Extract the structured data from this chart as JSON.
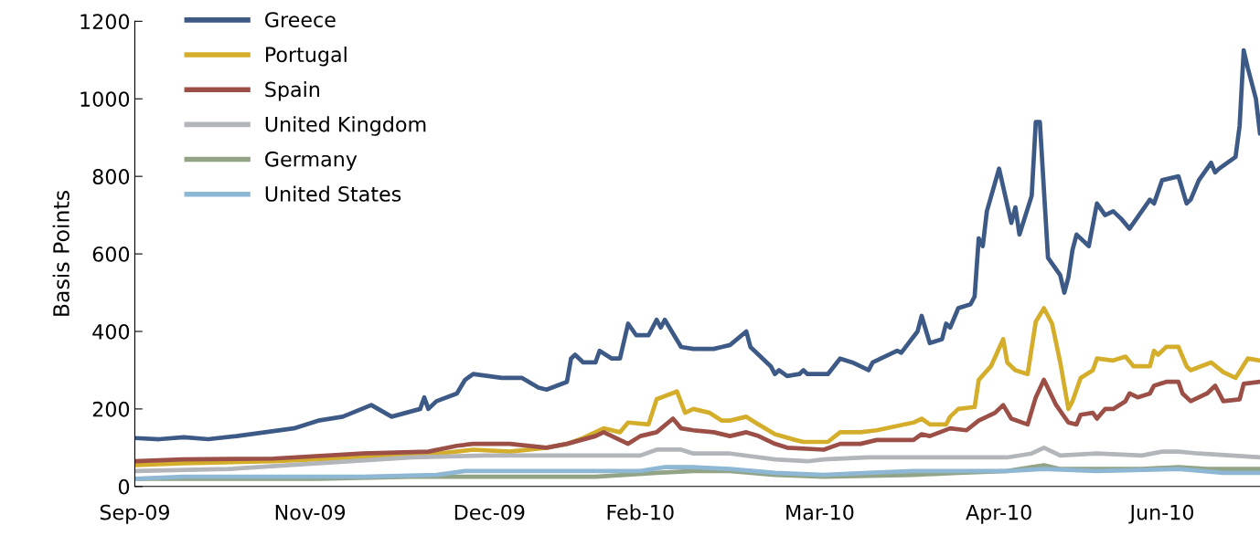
{
  "chart_data": {
    "type": "line",
    "ylabel": "Basis Points",
    "xlim": [
      "2009-09-30",
      "2010-07-03"
    ],
    "xticks": [
      {
        "value": "2009-09-30",
        "label": "Sep-09"
      },
      {
        "value": "2009-11-12",
        "label": "Nov-09"
      },
      {
        "value": "2009-12-26",
        "label": "Dec-09"
      },
      {
        "value": "2010-02-01",
        "label": "Feb-10"
      },
      {
        "value": "2010-03-17",
        "label": "Mar-10"
      },
      {
        "value": "2010-04-30",
        "label": "Apr-10"
      },
      {
        "value": "2010-06-09",
        "label": "Jun-10"
      }
    ],
    "ylim": [
      0,
      1200
    ],
    "yticks": [
      0,
      200,
      400,
      600,
      800,
      1000,
      1200
    ],
    "grid": false,
    "legend": "top left",
    "marker": "none",
    "line_style": "solid",
    "series": [
      {
        "name": "Greece",
        "color": "#3d5a87",
        "x": [
          "2009-09-30",
          "2009-10-06",
          "2009-10-12",
          "2009-10-18",
          "2009-10-25",
          "2009-11-01",
          "2009-11-08",
          "2009-11-14",
          "2009-11-20",
          "2009-11-27",
          "2009-12-02",
          "2009-12-09",
          "2009-12-10",
          "2009-12-11",
          "2009-12-13",
          "2009-12-18",
          "2009-12-20",
          "2009-12-22",
          "2009-12-29",
          "2010-01-03",
          "2010-01-07",
          "2010-01-09",
          "2010-01-14",
          "2010-01-15",
          "2010-01-16",
          "2010-01-18",
          "2010-01-21",
          "2010-01-22",
          "2010-01-25",
          "2010-01-27",
          "2010-01-29",
          "2010-01-31",
          "2010-02-03",
          "2010-02-05",
          "2010-02-06",
          "2010-02-07",
          "2010-02-11",
          "2010-02-14",
          "2010-02-19",
          "2010-02-21",
          "2010-02-23",
          "2010-02-27",
          "2010-02-28",
          "2010-03-03",
          "2010-03-05",
          "2010-03-06",
          "2010-03-07",
          "2010-03-09",
          "2010-03-12",
          "2010-03-13",
          "2010-03-14",
          "2010-03-19",
          "2010-03-22",
          "2010-03-25",
          "2010-03-27",
          "2010-03-29",
          "2010-03-30",
          "2010-04-01",
          "2010-04-05",
          "2010-04-06",
          "2010-04-10",
          "2010-04-11",
          "2010-04-13",
          "2010-04-16",
          "2010-04-17",
          "2010-04-18",
          "2010-04-20",
          "2010-04-23",
          "2010-04-24",
          "2010-04-25",
          "2010-04-26",
          "2010-04-27",
          "2010-04-30",
          "2010-05-03",
          "2010-05-04",
          "2010-05-05",
          "2010-05-08",
          "2010-05-09",
          "2010-05-10",
          "2010-05-12",
          "2010-05-15",
          "2010-05-16",
          "2010-05-17",
          "2010-05-18",
          "2010-05-19",
          "2010-05-22",
          "2010-05-24",
          "2010-05-26",
          "2010-05-28",
          "2010-05-30",
          "2010-06-01",
          "2010-06-06",
          "2010-06-07",
          "2010-06-09",
          "2010-06-13",
          "2010-06-15",
          "2010-06-16",
          "2010-06-18",
          "2010-06-21",
          "2010-06-22",
          "2010-06-23",
          "2010-06-27",
          "2010-06-28",
          "2010-06-29",
          "2010-06-30",
          "2010-07-02",
          "2010-07-03"
        ],
        "values": [
          125,
          122,
          127,
          122,
          130,
          140,
          150,
          170,
          180,
          210,
          180,
          200,
          230,
          200,
          220,
          240,
          275,
          290,
          280,
          280,
          255,
          250,
          270,
          330,
          340,
          320,
          320,
          350,
          330,
          330,
          420,
          390,
          390,
          430,
          410,
          430,
          360,
          355,
          355,
          360,
          365,
          400,
          360,
          330,
          310,
          290,
          300,
          285,
          290,
          300,
          290,
          290,
          330,
          320,
          310,
          300,
          320,
          330,
          350,
          345,
          400,
          440,
          370,
          380,
          420,
          410,
          460,
          470,
          490,
          640,
          620,
          710,
          820,
          680,
          720,
          650,
          750,
          940,
          940,
          590,
          545,
          500,
          540,
          610,
          650,
          620,
          730,
          700,
          710,
          690,
          665,
          740,
          730,
          790,
          800,
          730,
          740,
          790,
          835,
          810,
          820,
          850,
          930,
          1125,
          1080,
          1000,
          910
        ]
      },
      {
        "name": "Portugal",
        "color": "#d4ae2b",
        "x": [
          "2009-09-30",
          "2009-10-12",
          "2009-11-03",
          "2009-11-25",
          "2009-12-09",
          "2009-12-22",
          "2009-12-31",
          "2010-01-09",
          "2010-01-14",
          "2010-01-18",
          "2010-01-23",
          "2010-01-27",
          "2010-01-29",
          "2010-02-03",
          "2010-02-05",
          "2010-02-10",
          "2010-02-12",
          "2010-02-14",
          "2010-02-18",
          "2010-02-21",
          "2010-02-23",
          "2010-02-27",
          "2010-03-02",
          "2010-03-06",
          "2010-03-11",
          "2010-03-13",
          "2010-03-19",
          "2010-03-22",
          "2010-03-27",
          "2010-03-31",
          "2010-04-09",
          "2010-04-11",
          "2010-04-13",
          "2010-04-17",
          "2010-04-18",
          "2010-04-20",
          "2010-04-24",
          "2010-04-25",
          "2010-04-28",
          "2010-05-01",
          "2010-05-02",
          "2010-05-04",
          "2010-05-07",
          "2010-05-09",
          "2010-05-11",
          "2010-05-13",
          "2010-05-15",
          "2010-05-17",
          "2010-05-18",
          "2010-05-20",
          "2010-05-23",
          "2010-05-24",
          "2010-05-28",
          "2010-05-31",
          "2010-06-02",
          "2010-06-06",
          "2010-06-07",
          "2010-06-08",
          "2010-06-10",
          "2010-06-13",
          "2010-06-15",
          "2010-06-16",
          "2010-06-21",
          "2010-06-24",
          "2010-06-27",
          "2010-06-30",
          "2010-07-03"
        ],
        "values": [
          55,
          60,
          65,
          75,
          80,
          95,
          90,
          100,
          110,
          125,
          150,
          140,
          165,
          160,
          225,
          245,
          190,
          200,
          190,
          170,
          170,
          180,
          160,
          135,
          120,
          115,
          115,
          140,
          140,
          145,
          165,
          175,
          160,
          160,
          180,
          200,
          205,
          275,
          310,
          380,
          320,
          300,
          290,
          425,
          460,
          420,
          320,
          200,
          220,
          280,
          300,
          330,
          325,
          335,
          310,
          310,
          350,
          340,
          360,
          360,
          310,
          300,
          320,
          295,
          280,
          330,
          325
        ]
      },
      {
        "name": "Spain",
        "color": "#9b4f47",
        "x": [
          "2009-09-30",
          "2009-10-12",
          "2009-11-03",
          "2009-11-25",
          "2009-12-11",
          "2009-12-18",
          "2009-12-22",
          "2009-12-31",
          "2010-01-09",
          "2010-01-14",
          "2010-01-21",
          "2010-01-23",
          "2010-01-27",
          "2010-01-29",
          "2010-02-01",
          "2010-02-05",
          "2010-02-09",
          "2010-02-11",
          "2010-02-14",
          "2010-02-19",
          "2010-02-23",
          "2010-02-27",
          "2010-03-02",
          "2010-03-06",
          "2010-03-09",
          "2010-03-18",
          "2010-03-22",
          "2010-03-27",
          "2010-03-31",
          "2010-04-09",
          "2010-04-11",
          "2010-04-13",
          "2010-04-18",
          "2010-04-22",
          "2010-04-25",
          "2010-04-29",
          "2010-05-01",
          "2010-05-03",
          "2010-05-07",
          "2010-05-09",
          "2010-05-11",
          "2010-05-14",
          "2010-05-17",
          "2010-05-19",
          "2010-05-20",
          "2010-05-23",
          "2010-05-24",
          "2010-05-26",
          "2010-05-28",
          "2010-05-31",
          "2010-06-01",
          "2010-06-03",
          "2010-06-06",
          "2010-06-07",
          "2010-06-10",
          "2010-06-13",
          "2010-06-14",
          "2010-06-16",
          "2010-06-20",
          "2010-06-22",
          "2010-06-24",
          "2010-06-28",
          "2010-06-29",
          "2010-07-03"
        ],
        "values": [
          65,
          70,
          72,
          85,
          90,
          105,
          110,
          110,
          100,
          110,
          130,
          140,
          120,
          110,
          130,
          140,
          175,
          150,
          145,
          140,
          130,
          140,
          130,
          110,
          100,
          95,
          110,
          110,
          120,
          120,
          135,
          130,
          150,
          145,
          170,
          190,
          210,
          175,
          160,
          230,
          275,
          210,
          165,
          160,
          185,
          190,
          175,
          200,
          200,
          220,
          240,
          230,
          240,
          260,
          270,
          270,
          240,
          220,
          240,
          260,
          220,
          225,
          265,
          270
        ]
      },
      {
        "name": "United Kingdom",
        "color": "#b2b5b9",
        "x": [
          "2009-09-30",
          "2009-10-23",
          "2009-11-14",
          "2009-12-07",
          "2009-12-25",
          "2010-01-09",
          "2010-02-01",
          "2010-02-05",
          "2010-02-11",
          "2010-02-14",
          "2010-02-23",
          "2010-03-06",
          "2010-03-14",
          "2010-03-18",
          "2010-03-29",
          "2010-04-09",
          "2010-04-20",
          "2010-05-02",
          "2010-05-08",
          "2010-05-11",
          "2010-05-15",
          "2010-05-24",
          "2010-06-04",
          "2010-06-09",
          "2010-06-13",
          "2010-06-18",
          "2010-06-26",
          "2010-07-03"
        ],
        "values": [
          40,
          45,
          60,
          75,
          80,
          80,
          80,
          95,
          95,
          85,
          85,
          70,
          65,
          70,
          75,
          75,
          75,
          75,
          85,
          100,
          80,
          85,
          80,
          90,
          90,
          85,
          80,
          75
        ]
      },
      {
        "name": "Germany",
        "color": "#92a386",
        "x": [
          "2009-09-30",
          "2009-10-23",
          "2009-11-14",
          "2009-12-07",
          "2009-12-29",
          "2010-01-21",
          "2010-02-05",
          "2010-02-14",
          "2010-02-23",
          "2010-03-06",
          "2010-03-18",
          "2010-04-09",
          "2010-04-20",
          "2010-05-02",
          "2010-05-11",
          "2010-05-15",
          "2010-06-04",
          "2010-06-13",
          "2010-06-20",
          "2010-07-03"
        ],
        "values": [
          20,
          20,
          20,
          25,
          25,
          25,
          35,
          40,
          40,
          30,
          25,
          30,
          35,
          40,
          55,
          45,
          45,
          50,
          45,
          45
        ]
      },
      {
        "name": "United States",
        "color": "#8db7d3",
        "x": [
          "2009-09-30",
          "2009-10-12",
          "2009-11-03",
          "2009-11-25",
          "2009-12-13",
          "2009-12-20",
          "2010-01-09",
          "2010-02-01",
          "2010-02-07",
          "2010-02-14",
          "2010-02-23",
          "2010-03-06",
          "2010-03-18",
          "2010-03-29",
          "2010-04-09",
          "2010-05-02",
          "2010-05-11",
          "2010-05-24",
          "2010-06-13",
          "2010-06-24",
          "2010-07-03"
        ],
        "values": [
          20,
          25,
          25,
          25,
          30,
          40,
          40,
          40,
          50,
          50,
          45,
          35,
          30,
          35,
          40,
          40,
          45,
          40,
          45,
          35,
          35
        ]
      }
    ]
  }
}
